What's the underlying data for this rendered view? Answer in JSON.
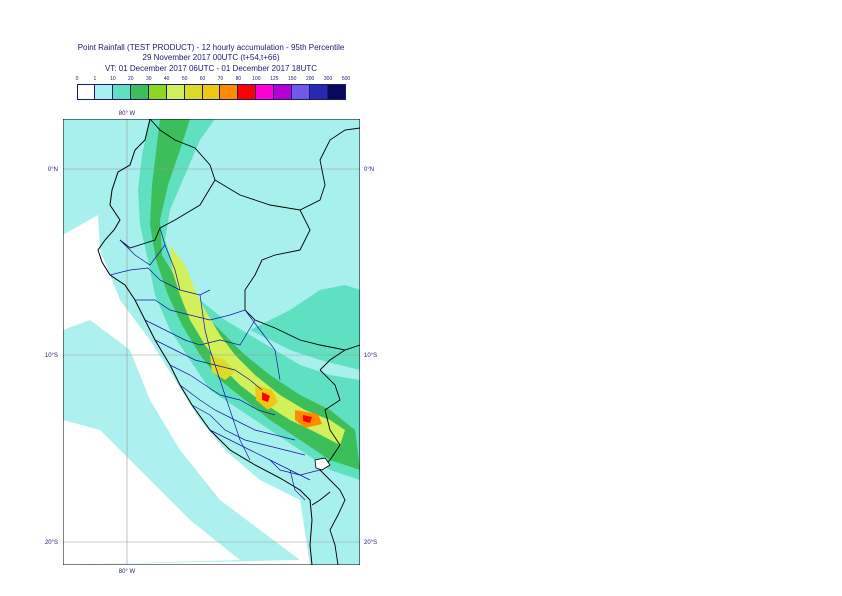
{
  "title": {
    "line1": "Point Rainfall (TEST PRODUCT) - 12 hourly accumulation - 95th Percentile",
    "line2": "29 November 2017 00UTC (t+54,t+66)",
    "line3": "VT: 01 December 2017 06UTC - 01 December 2017 18UTC"
  },
  "legend": {
    "ticks": [
      "0",
      "1",
      "10",
      "20",
      "30",
      "40",
      "50",
      "60",
      "70",
      "80",
      "100",
      "125",
      "150",
      "200",
      "300",
      "500"
    ],
    "colors": [
      "#ffffff",
      "#a8f0ee",
      "#5fe0c0",
      "#3cbe5a",
      "#8fd620",
      "#d2f05a",
      "#dcdc28",
      "#f0c814",
      "#ff8c00",
      "#ff0000",
      "#ff00d2",
      "#b400d2",
      "#6e5ae6",
      "#2828b4",
      "#0a0a5a"
    ]
  },
  "map": {
    "lon_label_top": "80° W",
    "lon_label_bottom": "80° W",
    "lat_labels": [
      {
        "left": "0°N",
        "right": "0°N"
      },
      {
        "left": "10°S",
        "right": "10°S"
      },
      {
        "left": "20°S",
        "right": "20°S"
      }
    ],
    "colors": {
      "sea": "#a8f0ee",
      "land_light": "#a8f0ee",
      "land_medium": "#5fe0c0",
      "border": "#000000",
      "admin": "#1414a0",
      "grid": "#9a9a9a"
    }
  }
}
